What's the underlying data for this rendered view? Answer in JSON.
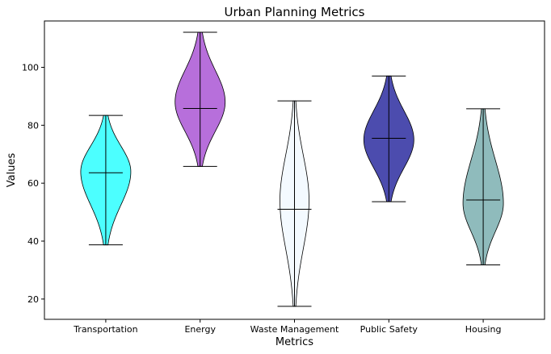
{
  "chart_data": {
    "type": "violin",
    "title": "Urban Planning Metrics",
    "xlabel": "Metrics",
    "ylabel": "Values",
    "ylim": [
      13,
      116
    ],
    "yticks": [
      20,
      40,
      60,
      80,
      100
    ],
    "grid": false,
    "categories": [
      "Transportation",
      "Energy",
      "Waste Management",
      "Public Safety",
      "Housing"
    ],
    "series": [
      {
        "category": "Transportation",
        "min": 38.7,
        "max": 83.4,
        "median": 63.6,
        "mode": 64,
        "color": "#00ffff",
        "max_half_width": 31
      },
      {
        "category": "Energy",
        "min": 65.8,
        "max": 112.1,
        "median": 85.8,
        "mode": 88,
        "color": "#9932cc",
        "max_half_width": 31
      },
      {
        "category": "Waste Management",
        "min": 17.5,
        "max": 88.4,
        "median": 51.0,
        "mode": 54,
        "color": "#f0f8ff",
        "max_half_width": 18
      },
      {
        "category": "Public Safety",
        "min": 53.6,
        "max": 97.0,
        "median": 75.5,
        "mode": 75,
        "color": "#00008b",
        "max_half_width": 31
      },
      {
        "category": "Housing",
        "min": 31.8,
        "max": 85.7,
        "median": 54.2,
        "mode": 53,
        "color": "#5f9ea0",
        "max_half_width": 25
      }
    ]
  }
}
